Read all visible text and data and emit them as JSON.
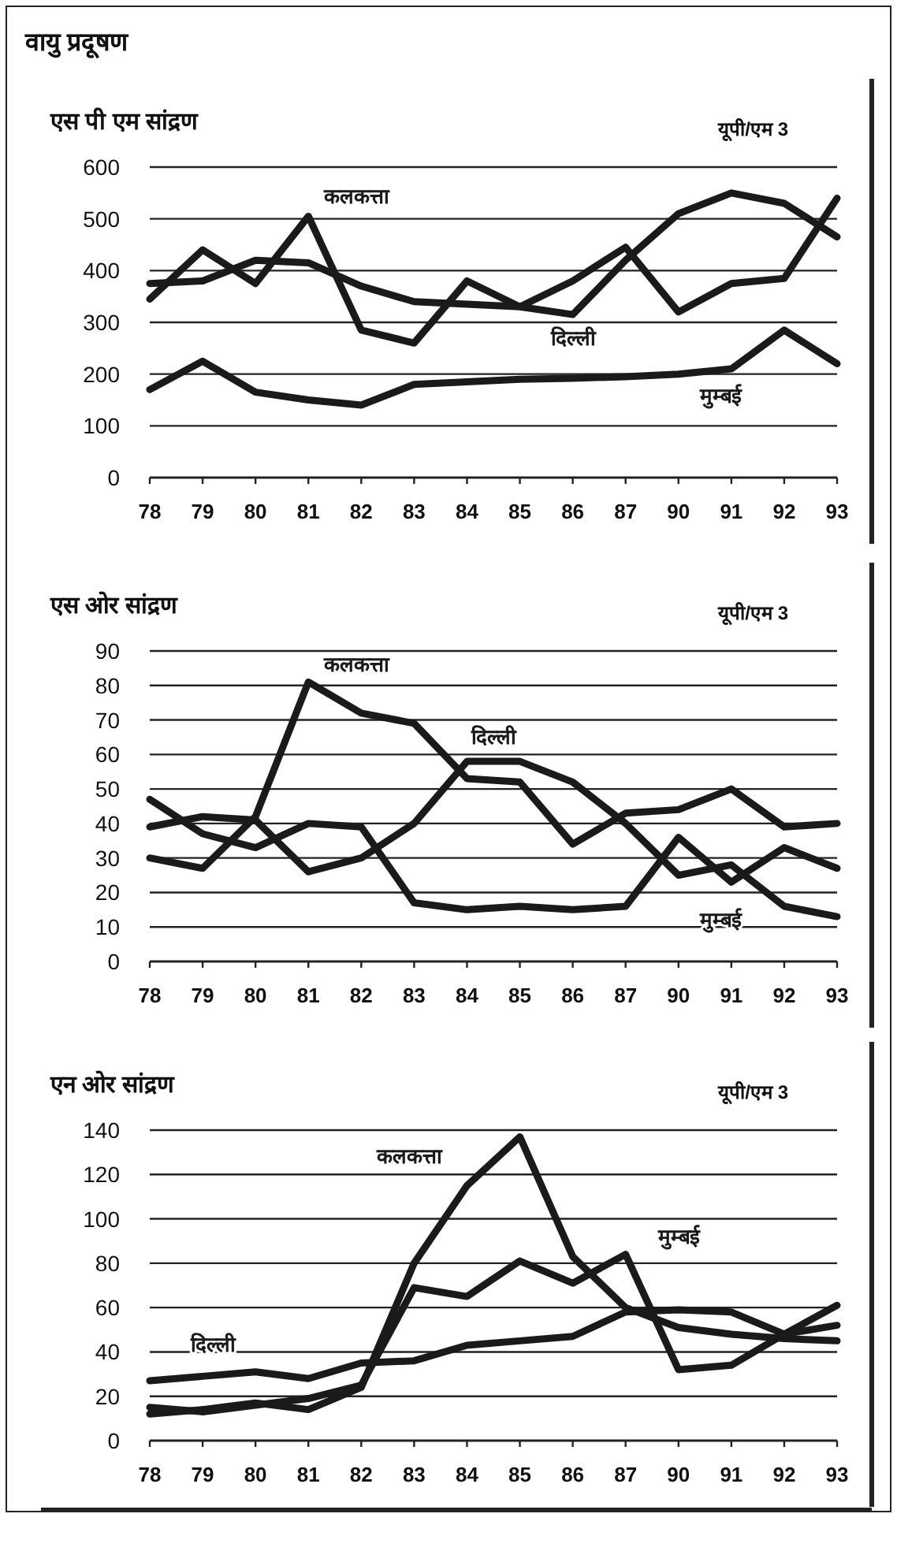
{
  "chart_data": [
    {
      "type": "line",
      "title": "एस पी एम सांद्रण",
      "subtitle": "यूपी/एम 3",
      "annotations": [
        "वायु प्रदूषण"
      ],
      "categories": [
        "78",
        "79",
        "80",
        "81",
        "82",
        "83",
        "84",
        "85",
        "86",
        "87",
        "90",
        "91",
        "92",
        "93"
      ],
      "ylim": [
        0,
        600
      ],
      "yticks": [
        0,
        100,
        200,
        300,
        400,
        500,
        600
      ],
      "grid": "y",
      "legend": false,
      "marker": "none",
      "line_style": "solid",
      "series": [
        {
          "name": "कलकत्ता",
          "color": "#1a1a1a",
          "values": [
            345,
            440,
            375,
            505,
            285,
            260,
            380,
            330,
            380,
            445,
            320,
            375,
            385,
            540
          ]
        },
        {
          "name": "दिल्ली",
          "color": "#1a1a1a",
          "values": [
            375,
            380,
            420,
            415,
            370,
            340,
            335,
            330,
            315,
            420,
            510,
            550,
            530,
            465
          ]
        },
        {
          "name": "मुम्बई",
          "color": "#1a1a1a",
          "values": [
            170,
            225,
            165,
            150,
            140,
            180,
            185,
            190,
            192,
            195,
            200,
            210,
            285,
            220
          ]
        }
      ]
    },
    {
      "type": "line",
      "title": "एस ओर सांद्रण",
      "subtitle": "यूपी/एम 3",
      "categories": [
        "78",
        "79",
        "80",
        "81",
        "82",
        "83",
        "84",
        "85",
        "86",
        "87",
        "90",
        "91",
        "92",
        "93"
      ],
      "ylim": [
        0,
        90
      ],
      "yticks": [
        0,
        10,
        20,
        30,
        40,
        50,
        60,
        70,
        80,
        90
      ],
      "grid": "y",
      "legend": false,
      "marker": "none",
      "line_style": "solid",
      "series": [
        {
          "name": "कलकत्ता",
          "color": "#1a1a1a",
          "values": [
            30,
            27,
            42,
            81,
            72,
            69,
            53,
            52,
            34,
            43,
            44,
            50,
            39,
            40
          ]
        },
        {
          "name": "दिल्ली",
          "color": "#1a1a1a",
          "values": [
            39,
            42,
            41,
            26,
            30,
            40,
            58,
            58,
            52,
            40,
            25,
            28,
            16,
            13
          ]
        },
        {
          "name": "मुम्बई",
          "color": "#1a1a1a",
          "values": [
            47,
            37,
            33,
            40,
            39,
            17,
            15,
            16,
            15,
            16,
            36,
            23,
            33,
            27
          ]
        }
      ]
    },
    {
      "type": "line",
      "title": "एन ओर सांद्रण",
      "subtitle": "यूपी/एम 3",
      "categories": [
        "78",
        "79",
        "80",
        "81",
        "82",
        "83",
        "84",
        "85",
        "86",
        "87",
        "90",
        "91",
        "92",
        "93"
      ],
      "ylim": [
        0,
        140
      ],
      "yticks": [
        0,
        20,
        40,
        60,
        80,
        100,
        120,
        140
      ],
      "grid": "y",
      "legend": false,
      "marker": "none",
      "line_style": "solid",
      "series": [
        {
          "name": "कलकत्ता",
          "color": "#1a1a1a",
          "values": [
            12,
            14,
            17,
            14,
            24,
            80,
            115,
            137,
            83,
            60,
            51,
            48,
            46,
            45
          ]
        },
        {
          "name": "दिल्ली",
          "color": "#1a1a1a",
          "values": [
            27,
            29,
            31,
            28,
            35,
            36,
            43,
            45,
            47,
            58,
            59,
            58,
            48,
            52
          ]
        },
        {
          "name": "मुम्बई",
          "color": "#1a1a1a",
          "values": [
            15,
            13,
            16,
            19,
            25,
            69,
            65,
            81,
            71,
            84,
            32,
            34,
            48,
            61
          ]
        }
      ]
    }
  ]
}
